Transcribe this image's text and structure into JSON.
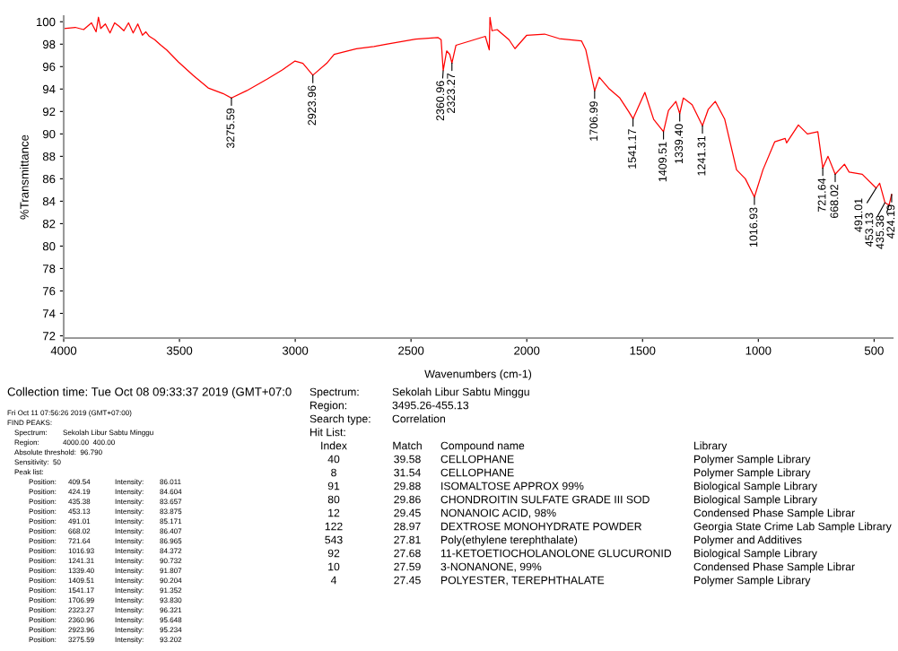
{
  "chart_data": {
    "type": "line",
    "xlabel": "Wavenumbers (cm-1)",
    "ylabel": "%Transmittance",
    "xlim": [
      4000,
      420
    ],
    "ylim": [
      71.8,
      100.5
    ],
    "xticks": [
      4000,
      3500,
      3000,
      2500,
      2000,
      1500,
      1000,
      500
    ],
    "yticks": [
      72,
      74,
      76,
      78,
      80,
      82,
      84,
      86,
      88,
      90,
      92,
      94,
      96,
      98,
      100
    ],
    "grid": false,
    "series": [
      {
        "color": "#ff0000",
        "x": [
          4000,
          3950,
          3914,
          3880,
          3860,
          3850,
          3840,
          3820,
          3800,
          3780,
          3761,
          3740,
          3720,
          3700,
          3680,
          3660,
          3645,
          3630,
          3607,
          3580,
          3556,
          3504,
          3440,
          3376,
          3312,
          3275.59,
          3210,
          3120,
          3056,
          3001,
          2967,
          2923.96,
          2864,
          2832,
          2736,
          2660,
          2608,
          2480,
          2384,
          2370,
          2360.96,
          2346,
          2333,
          2323.27,
          2306,
          2242,
          2179,
          2162,
          2159,
          2150,
          2128,
          2077,
          2051,
          2000,
          1923,
          1860,
          1764,
          1745,
          1706.99,
          1687,
          1643,
          1598,
          1560,
          1541.17,
          1490,
          1452,
          1409.51,
          1388,
          1356,
          1339.4,
          1324,
          1286,
          1241.31,
          1216,
          1186,
          1145,
          1094,
          1056,
          1016.93,
          980,
          929,
          884,
          878,
          827,
          788,
          743,
          721.64,
          699,
          668.02,
          628,
          608,
          551,
          491.01,
          476,
          453.13,
          435.38,
          424.19
        ],
        "values": [
          99.4,
          99.5,
          99.3,
          99.9,
          99.1,
          100.4,
          99.4,
          99.8,
          99.0,
          99.9,
          99.6,
          99.2,
          99.9,
          99.0,
          99.8,
          98.8,
          99.1,
          98.7,
          98.4,
          97.9,
          97.5,
          96.4,
          95.2,
          94.1,
          93.6,
          93.202,
          93.85,
          94.9,
          95.7,
          96.5,
          96.3,
          95.234,
          96.3,
          97.1,
          97.6,
          97.8,
          98.0,
          98.45,
          98.6,
          98.4,
          95.648,
          97.4,
          97.1,
          96.321,
          97.9,
          98.3,
          98.7,
          97.5,
          100.4,
          99.2,
          99.3,
          98.4,
          97.6,
          98.8,
          98.9,
          98.5,
          98.3,
          97.5,
          93.83,
          95.05,
          94.0,
          93.2,
          92.0,
          91.352,
          93.7,
          91.3,
          90.204,
          92.1,
          92.9,
          91.807,
          93.2,
          92.6,
          90.732,
          92.2,
          92.9,
          91.3,
          86.8,
          86.0,
          84.372,
          86.8,
          89.3,
          89.6,
          89.2,
          90.8,
          90.0,
          90.2,
          86.965,
          88.0,
          86.407,
          87.3,
          86.6,
          86.4,
          85.171,
          85.6,
          83.875,
          83.657,
          84.604
        ]
      }
    ],
    "annotations": [
      {
        "text": "3275.59",
        "x": 3275.59,
        "y": 93.202
      },
      {
        "text": "2923.96",
        "x": 2923.96,
        "y": 95.234
      },
      {
        "text": "2360.96",
        "x": 2360.96,
        "y": 95.648
      },
      {
        "text": "2323.27",
        "x": 2323.27,
        "y": 96.321
      },
      {
        "text": "1706.99",
        "x": 1706.99,
        "y": 93.83
      },
      {
        "text": "1541.17",
        "x": 1541.17,
        "y": 91.352
      },
      {
        "text": "1409.51",
        "x": 1409.51,
        "y": 90.204
      },
      {
        "text": "1339.40",
        "x": 1339.4,
        "y": 91.807
      },
      {
        "text": "1241.31",
        "x": 1241.31,
        "y": 90.732
      },
      {
        "text": "1016.93",
        "x": 1016.93,
        "y": 84.372
      },
      {
        "text": "721.64",
        "x": 721.64,
        "y": 86.965
      },
      {
        "text": "668.02",
        "x": 668.02,
        "y": 86.407
      },
      {
        "text": "491.01",
        "x": 491.01,
        "y": 85.171
      },
      {
        "text": "453.13",
        "x": 453.13,
        "y": 83.875
      },
      {
        "text": "435.38",
        "x": 435.38,
        "y": 83.657
      },
      {
        "text": "424.19",
        "x": 424.19,
        "y": 84.604
      },
      "Collection time: Tue Oct 08 09:33:37 2019 (GMT+07:0",
      "Fri Oct 11 07:56:26 2019 (GMT+07:00)",
      "FIND PEAKS:",
      "Spectrum:\tSekolah Libur Sabtu Minggu",
      "Region:\t4000.00  400.00",
      "Absolute threshold:  96.790",
      "Sensitivity:  50",
      "Peak list:",
      "Position:\t409.54\tIntensity:\t86.011",
      "Position:\t424.19\tIntensity:\t84.604",
      "Position:\t435.38\tIntensity:\t83.657",
      "Position:\t453.13\tIntensity:\t83.875",
      "Position:\t491.01\tIntensity:\t85.171",
      "Position:\t668.02\tIntensity:\t86.407",
      "Position:\t721.64\tIntensity:\t86.965",
      "Position:\t1016.93\tIntensity:\t84.372",
      "Position:\t1241.31\tIntensity:\t90.732",
      "Position:\t1339.40\tIntensity:\t91.807",
      "Position:\t1409.51\tIntensity:\t90.204",
      "Position:\t1541.17\tIntensity:\t91.352",
      "Position:\t1706.99\tIntensity:\t93.830",
      "Position:\t2323.27\tIntensity:\t96.321",
      "Position:\t2360.96\tIntensity:\t95.648",
      "Position:\t2923.96\tIntensity:\t95.234",
      "Position:\t3275.59\tIntensity:\t93.202",
      "Spectrum:\tSekolah Libur Sabtu Minggu",
      "Region:\t3495.26-455.13",
      "Search type:\tCorrelation",
      "Hit List:",
      "Index\tMatch\tCompound name\tLibrary",
      "40\t39.58\tCELLOPHANE\tPolymer Sample Library",
      "8\t31.54\tCELLOPHANE\tPolymer Sample Library",
      "91\t29.88\tISOMALTOSE APPROX 99%\tBiological Sample Library",
      "80\t29.86\tCHONDROITIN SULFATE GRADE III SOD\tBiological Sample Library",
      "12\t29.45\tNONANOIC ACID, 98%\tCondensed Phase Sample Librar",
      "122\t28.97\tDEXTROSE MONOHYDRATE POWDER\tGeorgia State Crime Lab Sample Library",
      "543\t27.81\tPoly(ethylene terephthalate)\tPolymer and Additives",
      "92\t27.68\t11-KETOETIOCHOLANOLONE GLUCURONID\tBiological Sample Library",
      "10\t27.59\t3-NONANONE, 99%\tCondensed Phase Sample Librar",
      "4\t27.45\tPOLYESTER, TEREPHTHALATE\tPolymer Sample Library"
    ]
  }
}
